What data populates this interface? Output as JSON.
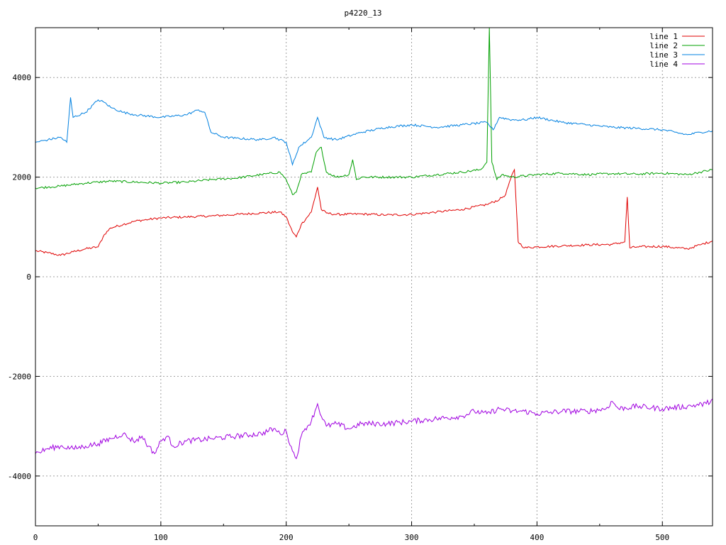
{
  "chart_data": {
    "type": "line",
    "title": "p4220_13",
    "xlabel": "",
    "ylabel": "",
    "xlim": [
      0,
      540
    ],
    "ylim": [
      -5000,
      5000
    ],
    "xticks": [
      0,
      100,
      200,
      300,
      400,
      500
    ],
    "yticks": [
      -4000,
      -2000,
      0,
      2000,
      4000
    ],
    "grid": true,
    "legend_position": "top-right",
    "series": [
      {
        "name": "line 1",
        "color": "#e00000",
        "x": [
          0,
          10,
          20,
          30,
          40,
          50,
          55,
          60,
          70,
          80,
          90,
          100,
          120,
          140,
          160,
          180,
          195,
          200,
          205,
          208,
          212,
          220,
          225,
          228,
          232,
          240,
          260,
          280,
          300,
          320,
          340,
          360,
          370,
          375,
          378,
          382,
          385,
          390,
          400,
          420,
          440,
          460,
          470,
          472,
          474,
          480,
          500,
          520,
          530,
          540
        ],
        "y": [
          520,
          480,
          430,
          500,
          560,
          600,
          850,
          980,
          1050,
          1120,
          1150,
          1180,
          1200,
          1220,
          1250,
          1280,
          1300,
          1200,
          900,
          800,
          1050,
          1300,
          1800,
          1350,
          1280,
          1250,
          1260,
          1240,
          1250,
          1300,
          1350,
          1450,
          1550,
          1650,
          1900,
          2150,
          700,
          580,
          600,
          620,
          640,
          650,
          700,
          1600,
          580,
          600,
          610,
          560,
          640,
          720
        ]
      },
      {
        "name": "line 2",
        "color": "#00a000",
        "x": [
          0,
          10,
          20,
          30,
          40,
          50,
          60,
          80,
          100,
          120,
          140,
          160,
          180,
          195,
          200,
          205,
          208,
          212,
          220,
          224,
          228,
          232,
          240,
          250,
          253,
          256,
          260,
          280,
          300,
          320,
          340,
          355,
          360,
          362,
          364,
          368,
          372,
          380,
          400,
          420,
          440,
          460,
          480,
          500,
          520,
          530,
          540
        ],
        "y": [
          1780,
          1800,
          1820,
          1850,
          1880,
          1900,
          1920,
          1900,
          1880,
          1900,
          1950,
          1980,
          2050,
          2100,
          1950,
          1650,
          1700,
          2050,
          2100,
          2500,
          2600,
          2100,
          2000,
          2050,
          2350,
          1950,
          2000,
          2000,
          2000,
          2050,
          2100,
          2150,
          2300,
          5000,
          2300,
          1950,
          2050,
          2000,
          2050,
          2080,
          2050,
          2070,
          2060,
          2080,
          2050,
          2100,
          2150
        ]
      },
      {
        "name": "line 3",
        "color": "#0080e0",
        "x": [
          0,
          10,
          20,
          25,
          28,
          30,
          40,
          50,
          55,
          60,
          70,
          80,
          100,
          120,
          130,
          135,
          140,
          150,
          160,
          180,
          190,
          200,
          205,
          210,
          220,
          225,
          230,
          240,
          260,
          280,
          300,
          320,
          340,
          360,
          365,
          370,
          380,
          390,
          400,
          420,
          440,
          460,
          480,
          500,
          510,
          520,
          530,
          540
        ],
        "y": [
          2700,
          2750,
          2800,
          2700,
          3600,
          3200,
          3300,
          3550,
          3500,
          3400,
          3300,
          3250,
          3200,
          3250,
          3350,
          3300,
          2900,
          2800,
          2780,
          2750,
          2800,
          2700,
          2250,
          2600,
          2800,
          3200,
          2800,
          2750,
          2900,
          3000,
          3050,
          3000,
          3050,
          3100,
          2950,
          3200,
          3150,
          3150,
          3200,
          3100,
          3050,
          3000,
          2980,
          2950,
          2900,
          2850,
          2900,
          2930
        ]
      },
      {
        "name": "line 4",
        "color": "#a000e0",
        "x": [
          0,
          10,
          20,
          30,
          40,
          50,
          60,
          70,
          75,
          80,
          85,
          90,
          95,
          100,
          105,
          110,
          120,
          140,
          160,
          180,
          190,
          195,
          200,
          205,
          208,
          212,
          215,
          220,
          225,
          228,
          232,
          240,
          250,
          260,
          280,
          300,
          320,
          340,
          350,
          360,
          370,
          380,
          390,
          400,
          420,
          440,
          455,
          460,
          465,
          480,
          500,
          520,
          535,
          540
        ],
        "y": [
          -3550,
          -3450,
          -3400,
          -3450,
          -3400,
          -3350,
          -3250,
          -3150,
          -3250,
          -3300,
          -3200,
          -3400,
          -3550,
          -3300,
          -3200,
          -3400,
          -3300,
          -3250,
          -3200,
          -3150,
          -3050,
          -3150,
          -3100,
          -3500,
          -3650,
          -3200,
          -3050,
          -2900,
          -2550,
          -2800,
          -3000,
          -2950,
          -3050,
          -2950,
          -2950,
          -2900,
          -2850,
          -2800,
          -2700,
          -2750,
          -2650,
          -2700,
          -2700,
          -2750,
          -2700,
          -2700,
          -2650,
          -2500,
          -2650,
          -2600,
          -2650,
          -2600,
          -2550,
          -2450
        ]
      }
    ]
  }
}
